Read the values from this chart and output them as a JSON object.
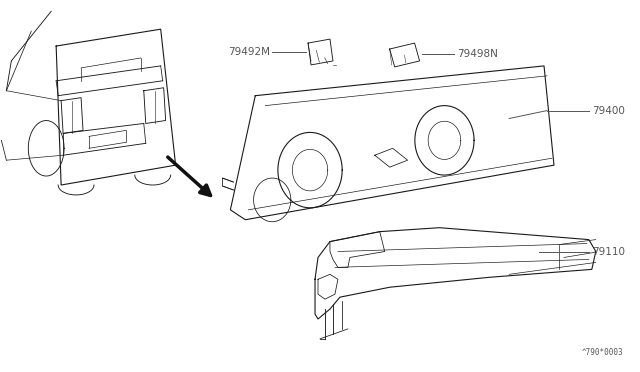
{
  "background_color": "#ffffff",
  "fig_width": 6.4,
  "fig_height": 3.72,
  "dpi": 100,
  "watermark": "^790*0003",
  "line_color": "#1a1a1a",
  "label_color": "#555555",
  "arrow_color": "#111111",
  "lw": 0.8
}
